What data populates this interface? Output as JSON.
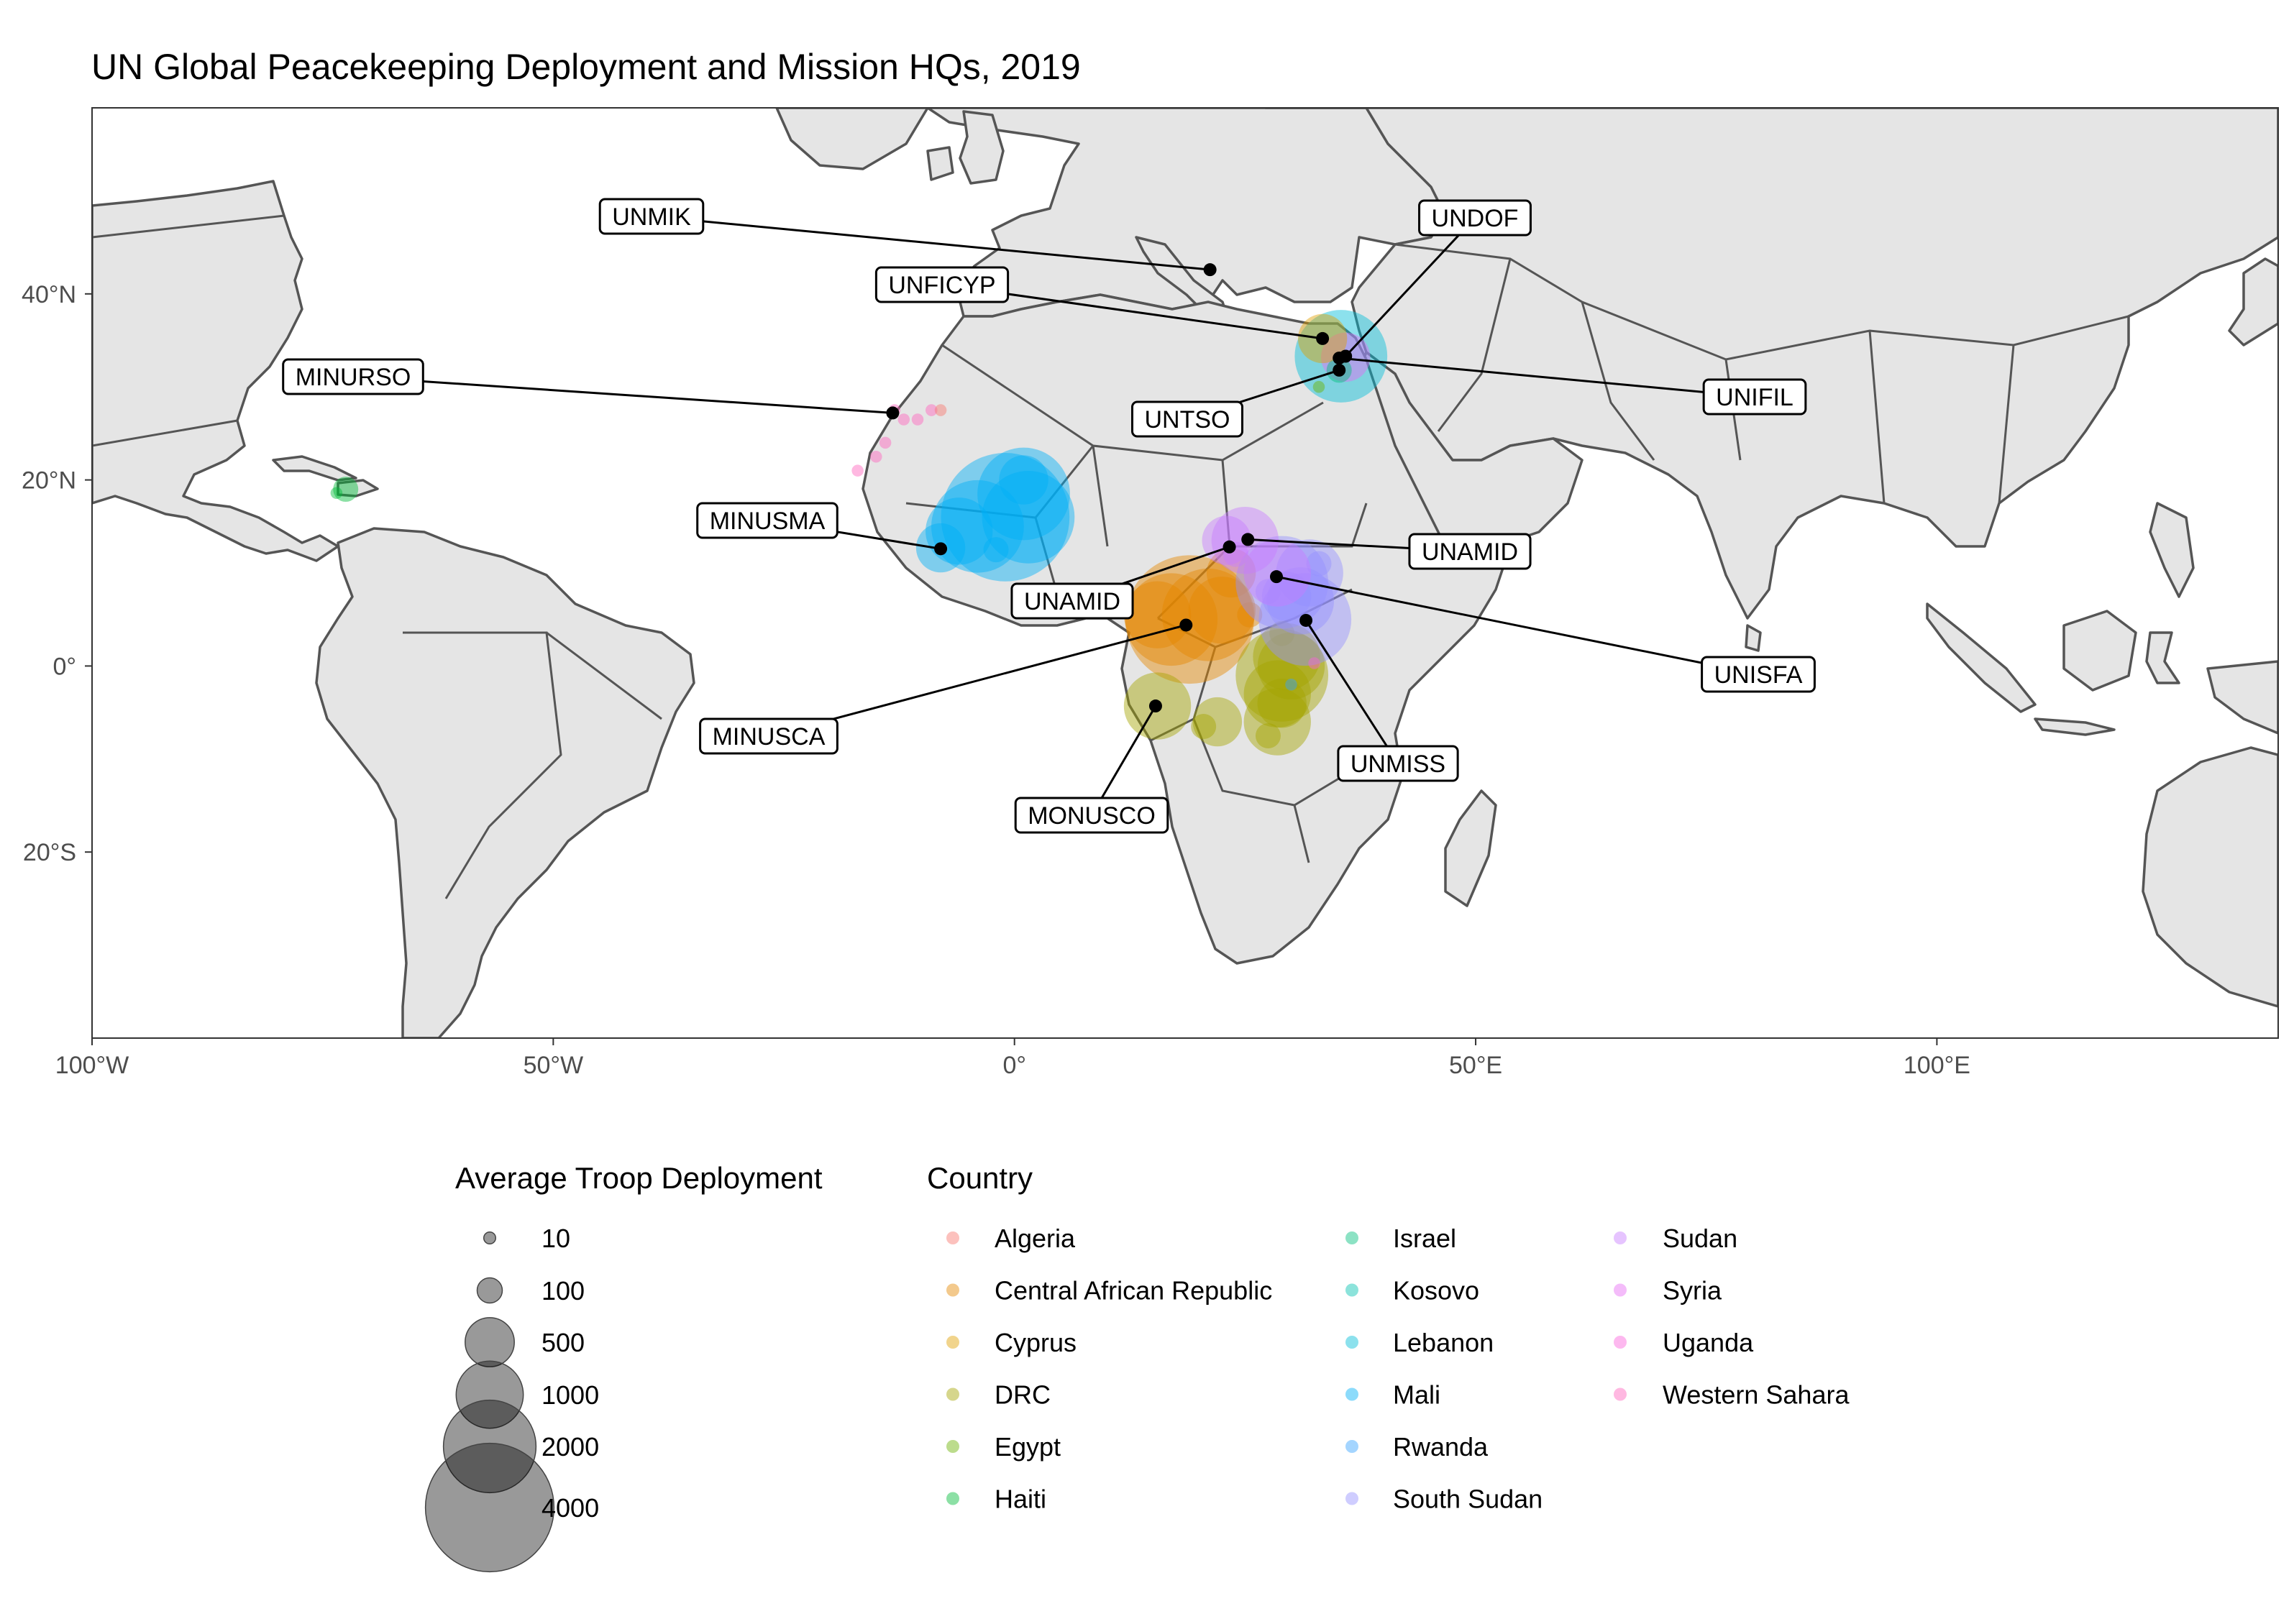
{
  "title": "UN Global Peacekeeping Deployment and Mission HQs, 2019",
  "colors": {
    "land": "#e5e5e5",
    "border": "#555555",
    "ocean": "#ffffff",
    "panel_border": "#333333",
    "hq": "#000000"
  },
  "map": {
    "lon_range": [
      -100,
      137
    ],
    "lat_range": [
      -40,
      60
    ],
    "x_ticks": [
      {
        "value": -100,
        "label": "100°W"
      },
      {
        "value": -50,
        "label": "50°W"
      },
      {
        "value": 0,
        "label": "0°"
      },
      {
        "value": 50,
        "label": "50°E"
      },
      {
        "value": 100,
        "label": "100°E"
      }
    ],
    "y_ticks": [
      {
        "value": 40,
        "label": "40°N"
      },
      {
        "value": 20,
        "label": "20°N"
      },
      {
        "value": 0,
        "label": "0°"
      },
      {
        "value": -20,
        "label": "20°S"
      }
    ]
  },
  "legend_size": {
    "title": "Average Troop Deployment",
    "items": [
      {
        "value": 10,
        "label": "10"
      },
      {
        "value": 100,
        "label": "100"
      },
      {
        "value": 500,
        "label": "500"
      },
      {
        "value": 1000,
        "label": "1000"
      },
      {
        "value": 2000,
        "label": "2000"
      },
      {
        "value": 4000,
        "label": "4000"
      }
    ]
  },
  "legend_country": {
    "title": "Country",
    "items": [
      {
        "label": "Algeria",
        "color": "#F8766D"
      },
      {
        "label": "Central African Republic",
        "color": "#E58700"
      },
      {
        "label": "Cyprus",
        "color": "#E0A000"
      },
      {
        "label": "DRC",
        "color": "#A3A500"
      },
      {
        "label": "Egypt",
        "color": "#6BB100"
      },
      {
        "label": "Haiti",
        "color": "#00BA38"
      },
      {
        "label": "Israel",
        "color": "#00BF7D"
      },
      {
        "label": "Kosovo",
        "color": "#00C0AF"
      },
      {
        "label": "Lebanon",
        "color": "#00BCD8"
      },
      {
        "label": "Mali",
        "color": "#00B0F6"
      },
      {
        "label": "Rwanda",
        "color": "#35A2FF"
      },
      {
        "label": "South Sudan",
        "color": "#9590FF"
      },
      {
        "label": "Sudan",
        "color": "#C77CFF"
      },
      {
        "label": "Syria",
        "color": "#E76BF3"
      },
      {
        "label": "Uganda",
        "color": "#FA62DB"
      },
      {
        "label": "Western Sahara",
        "color": "#FF62BC"
      }
    ]
  },
  "chart_data": {
    "type": "scatter",
    "title": "UN Global Peacekeeping Deployment and Mission HQs, 2019",
    "x_axis": "longitude",
    "y_axis": "latitude",
    "deployments": [
      {
        "country": "Mali",
        "lon": -1,
        "lat": 16,
        "troops": 4000
      },
      {
        "country": "Mali",
        "lon": 1,
        "lat": 18.5,
        "troops": 2000
      },
      {
        "country": "Mali",
        "lon": -4,
        "lat": 15,
        "troops": 2000
      },
      {
        "country": "Mali",
        "lon": 1.5,
        "lat": 16,
        "troops": 2000
      },
      {
        "country": "Mali",
        "lon": -6,
        "lat": 14.5,
        "troops": 1000
      },
      {
        "country": "Mali",
        "lon": -8,
        "lat": 12.7,
        "troops": 500
      },
      {
        "country": "Mali",
        "lon": -2,
        "lat": 12.5,
        "troops": 100
      },
      {
        "country": "Mali",
        "lon": 1,
        "lat": 20,
        "troops": 500
      },
      {
        "country": "Central African Republic",
        "lon": 19,
        "lat": 5,
        "troops": 4000
      },
      {
        "country": "Central African Republic",
        "lon": 17,
        "lat": 5,
        "troops": 2000
      },
      {
        "country": "Central African Republic",
        "lon": 21,
        "lat": 5.5,
        "troops": 2000
      },
      {
        "country": "Central African Republic",
        "lon": 22.5,
        "lat": 6,
        "troops": 1000
      },
      {
        "country": "Central African Republic",
        "lon": 15.5,
        "lat": 5.5,
        "troops": 1000
      },
      {
        "country": "Central African Republic",
        "lon": 23.5,
        "lat": 10,
        "troops": 500
      },
      {
        "country": "Central African Republic",
        "lon": 25.5,
        "lat": 5.5,
        "troops": 100
      },
      {
        "country": "DRC",
        "lon": 29,
        "lat": -1,
        "troops": 2000
      },
      {
        "country": "DRC",
        "lon": 29.5,
        "lat": 1,
        "troops": 1000
      },
      {
        "country": "DRC",
        "lon": 28.5,
        "lat": -3,
        "troops": 1000
      },
      {
        "country": "DRC",
        "lon": 30,
        "lat": 0,
        "troops": 1000
      },
      {
        "country": "DRC",
        "lon": 29,
        "lat": -4,
        "troops": 500
      },
      {
        "country": "DRC",
        "lon": 28.5,
        "lat": -6,
        "troops": 1000
      },
      {
        "country": "DRC",
        "lon": 15.5,
        "lat": -4.3,
        "troops": 1000
      },
      {
        "country": "DRC",
        "lon": 22,
        "lat": -6,
        "troops": 500
      },
      {
        "country": "DRC",
        "lon": 20.5,
        "lat": -6.5,
        "troops": 100
      },
      {
        "country": "DRC",
        "lon": 27.5,
        "lat": -7.5,
        "troops": 100
      },
      {
        "country": "DRC",
        "lon": 29,
        "lat": 3.5,
        "troops": 100
      },
      {
        "country": "South Sudan",
        "lon": 31.5,
        "lat": 5,
        "troops": 2000
      },
      {
        "country": "South Sudan",
        "lon": 29,
        "lat": 9,
        "troops": 2000
      },
      {
        "country": "South Sudan",
        "lon": 31,
        "lat": 7,
        "troops": 1000
      },
      {
        "country": "South Sudan",
        "lon": 32,
        "lat": 10,
        "troops": 1000
      },
      {
        "country": "South Sudan",
        "lon": 29.5,
        "lat": 7.5,
        "troops": 500
      },
      {
        "country": "South Sudan",
        "lon": 33,
        "lat": 11,
        "troops": 100
      },
      {
        "country": "South Sudan",
        "lon": 27.5,
        "lat": 8,
        "troops": 100
      },
      {
        "country": "Sudan",
        "lon": 25,
        "lat": 13.5,
        "troops": 1000
      },
      {
        "country": "Sudan",
        "lon": 23,
        "lat": 13.5,
        "troops": 500
      },
      {
        "country": "Sudan",
        "lon": 28.5,
        "lat": 10,
        "troops": 1000
      },
      {
        "country": "Sudan",
        "lon": 24,
        "lat": 12,
        "troops": 100
      },
      {
        "country": "Lebanon",
        "lon": 35.4,
        "lat": 33.3,
        "troops": 2000
      },
      {
        "country": "Syria",
        "lon": 35.9,
        "lat": 33.2,
        "troops": 500
      },
      {
        "country": "Israel",
        "lon": 35.2,
        "lat": 31.8,
        "troops": 100
      },
      {
        "country": "Cyprus",
        "lon": 33.4,
        "lat": 35.2,
        "troops": 500
      },
      {
        "country": "Egypt",
        "lon": 33,
        "lat": 30,
        "troops": 10
      },
      {
        "country": "Kosovo",
        "lon": 21.2,
        "lat": 42.6,
        "troops": 10
      },
      {
        "country": "Haiti",
        "lon": -72.5,
        "lat": 19,
        "troops": 100
      },
      {
        "country": "Haiti",
        "lon": -73.5,
        "lat": 18.6,
        "troops": 10
      },
      {
        "country": "Western Sahara",
        "lon": -13,
        "lat": 27.5,
        "troops": 10
      },
      {
        "country": "Western Sahara",
        "lon": -12,
        "lat": 26.5,
        "troops": 10
      },
      {
        "country": "Western Sahara",
        "lon": -10.5,
        "lat": 26.5,
        "troops": 10
      },
      {
        "country": "Western Sahara",
        "lon": -9,
        "lat": 27.5,
        "troops": 10
      },
      {
        "country": "Western Sahara",
        "lon": -14,
        "lat": 24,
        "troops": 10
      },
      {
        "country": "Western Sahara",
        "lon": -15,
        "lat": 22.5,
        "troops": 10
      },
      {
        "country": "Western Sahara",
        "lon": -17,
        "lat": 21,
        "troops": 10
      },
      {
        "country": "Algeria",
        "lon": -8,
        "lat": 27.5,
        "troops": 10
      },
      {
        "country": "Uganda",
        "lon": 32.5,
        "lat": 0.3,
        "troops": 10
      },
      {
        "country": "Rwanda",
        "lon": 30,
        "lat": -2,
        "troops": 10
      }
    ],
    "mission_hqs": [
      {
        "mission": "UNMIK",
        "lon": 21.2,
        "lat": 42.6
      },
      {
        "mission": "UNFICYP",
        "lon": 33.4,
        "lat": 35.2
      },
      {
        "mission": "UNDOF",
        "lon": 35.9,
        "lat": 33.3
      },
      {
        "mission": "UNIFIL",
        "lon": 35.2,
        "lat": 33.1
      },
      {
        "mission": "UNTSO",
        "lon": 35.2,
        "lat": 31.8
      },
      {
        "mission": "MINURSO",
        "lon": -13.2,
        "lat": 27.2
      },
      {
        "mission": "MINUSMA",
        "lon": -8,
        "lat": 12.6
      },
      {
        "mission": "UNAMID",
        "lon": 25.3,
        "lat": 13.6
      },
      {
        "mission": "UNAMID",
        "lon": 23.3,
        "lat": 12.8
      },
      {
        "mission": "UNISFA",
        "lon": 28.4,
        "lat": 9.6
      },
      {
        "mission": "MINUSCA",
        "lon": 18.6,
        "lat": 4.4
      },
      {
        "mission": "UNMISS",
        "lon": 31.6,
        "lat": 4.9
      },
      {
        "mission": "MONUSCO",
        "lon": 15.3,
        "lat": -4.3
      }
    ]
  }
}
